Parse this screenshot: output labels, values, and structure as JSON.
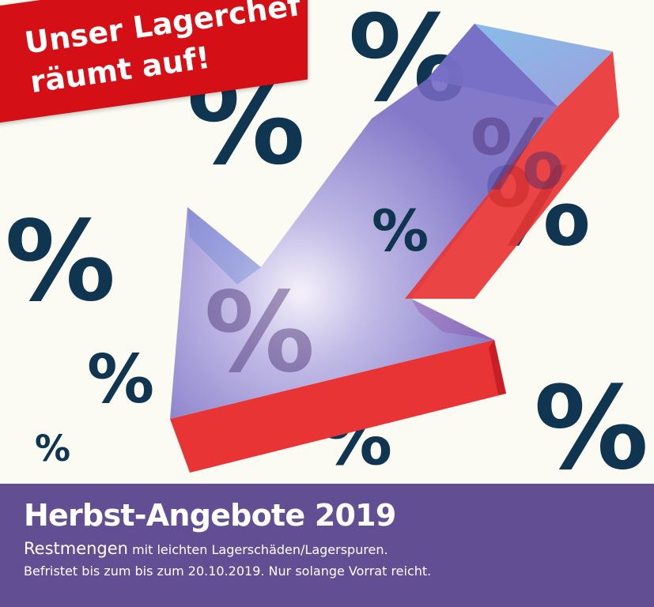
{
  "banner": {
    "headline_line1": "Unser Lagerchef",
    "headline_line2": "räumt auf!"
  },
  "percent_symbol": "%",
  "footer": {
    "title": "Herbst-Angebote 2019",
    "line1_big": "Restmengen",
    "line1_rest": " mit leichten Lagerschäden/Lagerspuren.",
    "line2": "Befristet bis zum bis zum 20.10.2019. Nur solange Vorrat reicht."
  },
  "colors": {
    "background": "#fbfbf4",
    "percent": "#0f3550",
    "banner_red": "#d40f16",
    "footer_purple": "#624e92",
    "arrow_red": "#e83434",
    "arrow_violet": "#7d73c9"
  },
  "icons": {
    "arrow": "down-left-arrow-icon"
  }
}
